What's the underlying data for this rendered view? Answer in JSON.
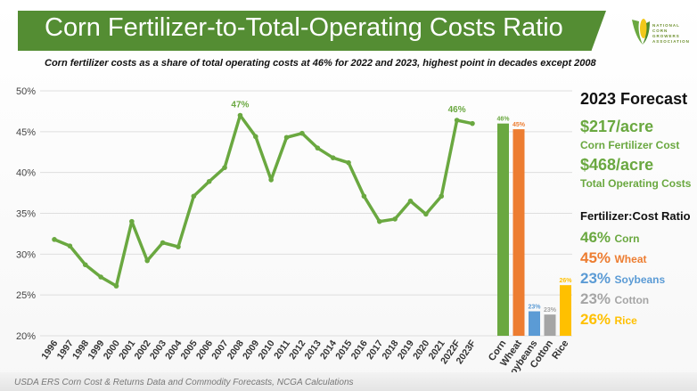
{
  "header": {
    "title": "Corn Fertilizer-to-Total-Operating Costs Ratio",
    "subtitle": "Corn fertilizer costs as a share of total operating costs at 46% for 2022 and 2023, highest point in decades except 2008",
    "logo_text": "NATIONAL CORN GROWERS ASSOCIATION"
  },
  "chart_data": [
    {
      "type": "line",
      "ylim": [
        20,
        50
      ],
      "yticks": [
        "20%",
        "25%",
        "30%",
        "35%",
        "40%",
        "45%",
        "50%"
      ],
      "grid": true,
      "categories": [
        "1996",
        "1997",
        "1998",
        "1999",
        "2000",
        "2001",
        "2002",
        "2003",
        "2004",
        "2005",
        "2006",
        "2007",
        "2008",
        "2009",
        "2010",
        "2011",
        "2012",
        "2013",
        "2014",
        "2015",
        "2016",
        "2017",
        "2018",
        "2019",
        "2020",
        "2021",
        "2022F",
        "2023F"
      ],
      "values": [
        31.8,
        31.0,
        28.7,
        27.2,
        26.1,
        34.0,
        29.2,
        31.4,
        30.9,
        37.1,
        38.9,
        40.6,
        47.0,
        44.4,
        39.1,
        44.3,
        44.8,
        43.0,
        41.8,
        41.2,
        37.1,
        34.0,
        34.3,
        36.5,
        34.9,
        37.1,
        46.4,
        46.0
      ],
      "annotations": [
        {
          "category": "2008",
          "label": "47%"
        },
        {
          "category": "2022F",
          "label": "46%"
        }
      ],
      "color": "#6aa840"
    },
    {
      "type": "bar",
      "ylim": [
        20,
        50
      ],
      "categories": [
        "Corn",
        "Wheat",
        "Soybeans",
        "Cotton",
        "Rice"
      ],
      "values": [
        46,
        45.3,
        23,
        22.6,
        26.2
      ],
      "labels": [
        "46%",
        "45%",
        "23%",
        "23%",
        "26%"
      ],
      "colors": [
        "#6aa840",
        "#ed7d31",
        "#5b9bd5",
        "#a5a5a5",
        "#ffc000"
      ]
    }
  ],
  "forecast": {
    "heading": "2023 Forecast",
    "fert_cost": "$217/acre",
    "fert_label": "Corn Fertilizer Cost",
    "total_cost": "$468/acre",
    "total_label": "Total Operating Costs",
    "ratio_heading": "Fertilizer:Cost Ratio",
    "ratios": [
      {
        "pct": "46%",
        "crop": "Corn",
        "color": "#6aa840"
      },
      {
        "pct": "45%",
        "crop": "Wheat",
        "color": "#ed7d31"
      },
      {
        "pct": "23%",
        "crop": "Soybeans",
        "color": "#5b9bd5"
      },
      {
        "pct": "23%",
        "crop": "Cotton",
        "color": "#a5a5a5"
      },
      {
        "pct": "26%",
        "crop": "Rice",
        "color": "#ffc000"
      }
    ]
  },
  "footer": "USDA ERS Corn Cost & Returns Data and Commodity Forecasts, NCGA Calculations"
}
